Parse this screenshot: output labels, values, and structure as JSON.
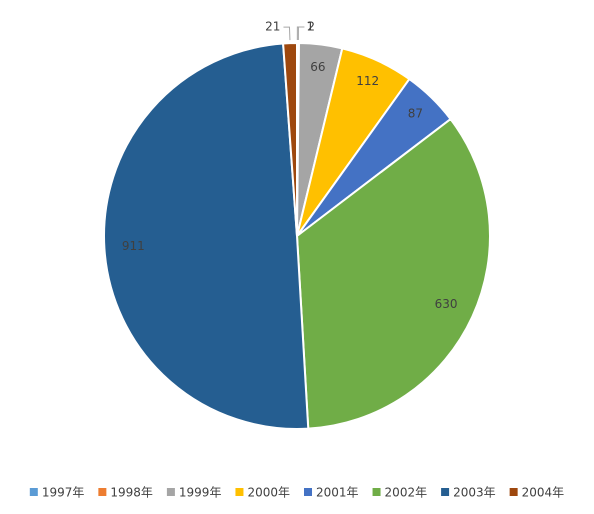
{
  "chart_data": {
    "type": "pie",
    "categories": [
      "1997年",
      "1998年",
      "1999年",
      "2000年",
      "2001年",
      "2002年",
      "2003年",
      "2004年"
    ],
    "values": [
      1,
      2,
      66,
      112,
      87,
      630,
      911,
      21
    ],
    "colors": [
      "#5b9bd5",
      "#ed7d31",
      "#a5a5a5",
      "#ffc000",
      "#4472c4",
      "#70ad47",
      "#255e91",
      "#9e480e"
    ],
    "legend": "bottom"
  }
}
